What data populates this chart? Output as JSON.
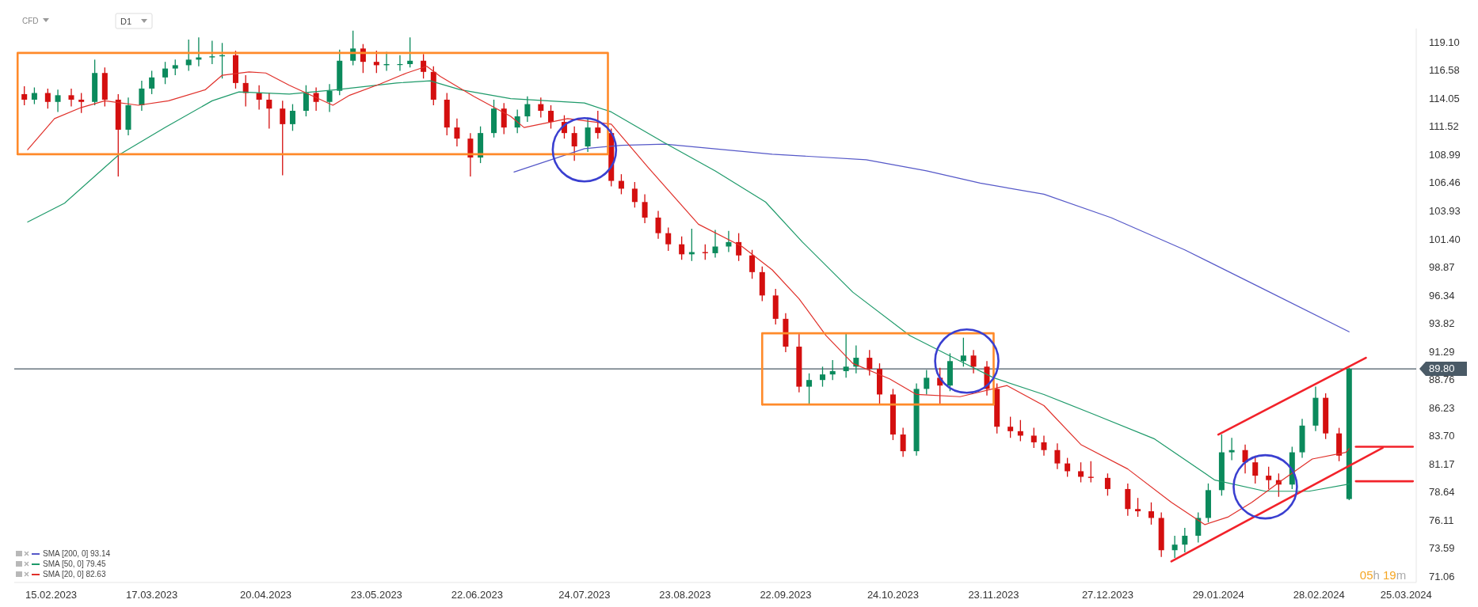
{
  "chart_data": {
    "type": "candlestick",
    "x": [
      "2023-02-07",
      "2023-02-10",
      "2023-02-14",
      "2023-02-17",
      "2023-02-21",
      "2023-02-24",
      "2023-02-28",
      "2023-03-03",
      "2023-03-07",
      "2023-03-10",
      "2023-03-14",
      "2023-03-17",
      "2023-03-21",
      "2023-03-24",
      "2023-03-28",
      "2023-03-31",
      "2023-04-04",
      "2023-04-07",
      "2023-04-11",
      "2023-04-14",
      "2023-04-18",
      "2023-04-21",
      "2023-04-25",
      "2023-04-28",
      "2023-05-02",
      "2023-05-05",
      "2023-05-09",
      "2023-05-12",
      "2023-05-16",
      "2023-05-19",
      "2023-05-23",
      "2023-05-26",
      "2023-05-30",
      "2023-06-02",
      "2023-06-06",
      "2023-06-09",
      "2023-06-13",
      "2023-06-16",
      "2023-06-20",
      "2023-06-23",
      "2023-06-27",
      "2023-06-30",
      "2023-07-04",
      "2023-07-07",
      "2023-07-11",
      "2023-07-14",
      "2023-07-18",
      "2023-07-21",
      "2023-07-25",
      "2023-07-28",
      "2023-08-01",
      "2023-08-04",
      "2023-08-08",
      "2023-08-11",
      "2023-08-15",
      "2023-08-18",
      "2023-08-22",
      "2023-08-25",
      "2023-08-29",
      "2023-09-01",
      "2023-09-05",
      "2023-09-08",
      "2023-09-12",
      "2023-09-15",
      "2023-09-19",
      "2023-09-22",
      "2023-09-26",
      "2023-09-29",
      "2023-10-03",
      "2023-10-06",
      "2023-10-10",
      "2023-10-13",
      "2023-10-17",
      "2023-10-20",
      "2023-10-24",
      "2023-10-27",
      "2023-10-31",
      "2023-11-03",
      "2023-11-07",
      "2023-11-10",
      "2023-11-14",
      "2023-11-17",
      "2023-11-21",
      "2023-11-24",
      "2023-11-28",
      "2023-12-01",
      "2023-12-05",
      "2023-12-08",
      "2023-12-12",
      "2023-12-15",
      "2023-12-19",
      "2023-12-22",
      "2023-12-27",
      "2024-01-02",
      "2024-01-05",
      "2024-01-09",
      "2024-01-12",
      "2024-01-16",
      "2024-01-19",
      "2024-01-23",
      "2024-01-26",
      "2024-01-30",
      "2024-02-02",
      "2024-02-06",
      "2024-02-09",
      "2024-02-13",
      "2024-02-16",
      "2024-02-20",
      "2024-02-23",
      "2024-02-27",
      "2024-03-01",
      "2024-03-05",
      "2024-03-08"
    ],
    "ohlc": [
      [
        114.5,
        115.2,
        113.5,
        114.0
      ],
      [
        114.0,
        115.1,
        113.6,
        114.6
      ],
      [
        114.6,
        115.0,
        113.2,
        113.8
      ],
      [
        113.8,
        114.9,
        112.9,
        114.4
      ],
      [
        114.4,
        115.0,
        113.4,
        114.0
      ],
      [
        114.0,
        114.6,
        112.8,
        113.8
      ],
      [
        113.8,
        117.6,
        113.5,
        116.4
      ],
      [
        116.4,
        116.9,
        113.4,
        114.0
      ],
      [
        114.0,
        114.5,
        107.1,
        111.3
      ],
      [
        111.3,
        114.2,
        110.8,
        113.5
      ],
      [
        113.5,
        115.7,
        113.0,
        115.0
      ],
      [
        115.0,
        116.6,
        114.5,
        116.0
      ],
      [
        116.0,
        117.4,
        115.4,
        116.8
      ],
      [
        116.8,
        117.6,
        116.2,
        117.1
      ],
      [
        117.1,
        119.4,
        116.6,
        117.6
      ],
      [
        117.6,
        119.6,
        117.0,
        117.8
      ],
      [
        117.8,
        119.3,
        117.2,
        117.9
      ],
      [
        117.9,
        119.1,
        115.9,
        118.0
      ],
      [
        118.0,
        118.4,
        115.0,
        115.5
      ],
      [
        115.5,
        116.2,
        113.4,
        114.6
      ],
      [
        114.6,
        115.3,
        113.1,
        114.0
      ],
      [
        114.0,
        114.6,
        111.4,
        113.2
      ],
      [
        113.2,
        113.9,
        107.2,
        111.8
      ],
      [
        111.8,
        113.6,
        111.2,
        113.0
      ],
      [
        113.0,
        115.3,
        112.5,
        114.6
      ],
      [
        114.6,
        115.1,
        113.0,
        113.8
      ],
      [
        113.8,
        115.4,
        112.9,
        114.8
      ],
      [
        114.8,
        118.5,
        114.4,
        117.5
      ],
      [
        117.5,
        120.2,
        117.1,
        118.6
      ],
      [
        118.6,
        119.0,
        116.4,
        117.4
      ],
      [
        117.4,
        118.4,
        116.4,
        117.1
      ],
      [
        117.1,
        118.3,
        116.6,
        117.2
      ],
      [
        117.2,
        118.0,
        116.6,
        117.2
      ],
      [
        117.2,
        119.6,
        116.9,
        117.5
      ],
      [
        117.5,
        118.1,
        115.9,
        116.5
      ],
      [
        116.5,
        117.0,
        113.5,
        114.0
      ],
      [
        114.0,
        114.6,
        110.8,
        111.5
      ],
      [
        111.5,
        112.3,
        109.8,
        110.5
      ],
      [
        110.5,
        111.0,
        107.1,
        108.8
      ],
      [
        108.8,
        111.6,
        108.3,
        111.0
      ],
      [
        111.0,
        114.0,
        110.6,
        113.2
      ],
      [
        113.2,
        113.7,
        110.9,
        111.5
      ],
      [
        111.5,
        113.1,
        111.0,
        112.5
      ],
      [
        112.5,
        114.3,
        112.0,
        113.6
      ],
      [
        113.6,
        114.2,
        112.4,
        113.0
      ],
      [
        113.0,
        113.5,
        111.4,
        112.0
      ],
      [
        112.0,
        112.6,
        110.5,
        111.0
      ],
      [
        111.0,
        111.6,
        108.5,
        109.8
      ],
      [
        109.8,
        112.4,
        109.3,
        111.5
      ],
      [
        111.5,
        113.0,
        110.5,
        111.0
      ],
      [
        111.0,
        111.4,
        106.2,
        106.7
      ],
      [
        106.7,
        107.3,
        105.5,
        106.0
      ],
      [
        106.0,
        106.6,
        104.3,
        104.8
      ],
      [
        104.8,
        105.5,
        102.9,
        103.4
      ],
      [
        103.4,
        104.0,
        101.5,
        102.0
      ],
      [
        102.0,
        102.5,
        100.4,
        101.0
      ],
      [
        101.0,
        101.7,
        99.6,
        100.1
      ],
      [
        100.1,
        102.4,
        99.5,
        100.3
      ],
      [
        100.3,
        101.0,
        99.6,
        100.2
      ],
      [
        100.2,
        102.3,
        99.8,
        100.8
      ],
      [
        100.8,
        102.2,
        100.3,
        101.2
      ],
      [
        101.2,
        102.0,
        99.5,
        100.0
      ],
      [
        100.0,
        100.5,
        97.9,
        98.5
      ],
      [
        98.5,
        99.0,
        95.9,
        96.4
      ],
      [
        96.4,
        97.0,
        93.8,
        94.3
      ],
      [
        94.3,
        94.8,
        91.3,
        91.8
      ],
      [
        91.8,
        93.0,
        87.7,
        88.2
      ],
      [
        88.2,
        89.4,
        86.6,
        88.8
      ],
      [
        88.8,
        90.0,
        88.2,
        89.3
      ],
      [
        89.3,
        90.6,
        88.8,
        89.6
      ],
      [
        89.6,
        93.0,
        89.0,
        90.0
      ],
      [
        90.0,
        91.9,
        89.4,
        90.8
      ],
      [
        90.8,
        91.5,
        89.2,
        89.8
      ],
      [
        89.8,
        90.3,
        86.6,
        87.5
      ],
      [
        87.5,
        88.0,
        83.4,
        83.9
      ],
      [
        83.9,
        84.5,
        81.9,
        82.4
      ],
      [
        82.4,
        88.5,
        82.0,
        88.0
      ],
      [
        88.0,
        89.7,
        87.5,
        89.0
      ],
      [
        89.0,
        89.9,
        86.6,
        88.3
      ],
      [
        88.3,
        91.2,
        87.8,
        90.5
      ],
      [
        90.5,
        92.6,
        90.0,
        91.0
      ],
      [
        91.0,
        91.5,
        89.4,
        90.0
      ],
      [
        90.0,
        90.5,
        87.4,
        88.0
      ],
      [
        88.0,
        88.5,
        84.0,
        84.6
      ],
      [
        84.6,
        85.5,
        83.6,
        84.2
      ],
      [
        84.2,
        85.2,
        83.3,
        83.8
      ],
      [
        83.8,
        84.5,
        82.7,
        83.2
      ],
      [
        83.2,
        83.8,
        82.0,
        82.5
      ],
      [
        82.5,
        83.1,
        80.8,
        81.3
      ],
      [
        81.3,
        81.8,
        80.1,
        80.6
      ],
      [
        80.6,
        81.4,
        79.6,
        80.1
      ],
      [
        80.1,
        81.5,
        79.6,
        80.0
      ],
      [
        80.0,
        80.4,
        78.4,
        79.0
      ],
      [
        79.0,
        79.5,
        76.6,
        77.2
      ],
      [
        77.2,
        78.2,
        76.5,
        77.0
      ],
      [
        77.0,
        77.8,
        75.8,
        76.4
      ],
      [
        76.4,
        76.9,
        72.9,
        73.5
      ],
      [
        73.5,
        74.8,
        72.8,
        74.0
      ],
      [
        74.0,
        75.5,
        73.3,
        74.8
      ],
      [
        74.8,
        76.9,
        74.2,
        76.4
      ],
      [
        76.4,
        79.5,
        76.0,
        78.9
      ],
      [
        78.9,
        83.9,
        78.4,
        82.3
      ],
      [
        82.3,
        83.6,
        81.6,
        82.5
      ],
      [
        82.5,
        83.0,
        80.4,
        81.4
      ],
      [
        81.4,
        82.0,
        79.5,
        80.2
      ],
      [
        80.2,
        81.0,
        79.0,
        79.8
      ],
      [
        79.8,
        80.4,
        78.3,
        79.4
      ],
      [
        79.4,
        82.8,
        79.0,
        82.3
      ],
      [
        82.3,
        85.3,
        81.8,
        84.7
      ],
      [
        84.7,
        88.2,
        84.2,
        87.2
      ],
      [
        87.2,
        87.6,
        83.5,
        84.0
      ],
      [
        84.0,
        84.5,
        81.5,
        82.0
      ],
      [
        78.1,
        89.9,
        78.0,
        89.8
      ]
    ],
    "series": [
      {
        "type": "line",
        "name": "SMA [200, 0] 93.14",
        "color": "#5558c8",
        "x": [
          "2023-07-03",
          "2023-07-24",
          "2023-08-04",
          "2023-08-17",
          "2023-09-18",
          "2023-10-16",
          "2023-11-03",
          "2023-11-19",
          "2023-12-08",
          "2023-12-28",
          "2024-01-19",
          "2024-02-10",
          "2024-03-08"
        ],
        "values": [
          107.5,
          109.6,
          109.9,
          110.0,
          109.1,
          108.6,
          107.6,
          106.5,
          105.5,
          103.4,
          100.5,
          97.2,
          93.14
        ]
      },
      {
        "type": "line",
        "name": "SMA [50, 0] 79.45",
        "color": "#1e9a6a",
        "x": [
          "2023-02-08",
          "2023-02-19",
          "2023-03-07",
          "2023-03-21",
          "2023-04-04",
          "2023-04-12",
          "2023-04-27",
          "2023-05-11",
          "2023-05-29",
          "2023-06-08",
          "2023-06-17",
          "2023-07-02",
          "2023-07-24",
          "2023-08-01",
          "2023-08-17",
          "2023-09-01",
          "2023-09-16",
          "2023-09-27",
          "2023-10-12",
          "2023-10-29",
          "2023-11-13",
          "2023-11-23",
          "2023-12-08",
          "2023-12-23",
          "2024-01-10",
          "2024-01-28",
          "2024-02-12",
          "2024-02-25",
          "2024-03-08"
        ],
        "values": [
          103.0,
          104.7,
          109.0,
          111.5,
          113.9,
          114.7,
          114.5,
          114.9,
          115.5,
          115.7,
          114.9,
          114.1,
          113.7,
          112.9,
          110.1,
          107.6,
          104.8,
          101.2,
          96.7,
          92.8,
          90.5,
          89.0,
          87.5,
          85.7,
          83.5,
          79.8,
          78.8,
          78.8,
          79.45
        ]
      },
      {
        "type": "line",
        "name": "SMA [20, 0] 82.63",
        "color": "#e0302a",
        "x": [
          "2023-02-08",
          "2023-02-16",
          "2023-02-24",
          "2023-03-03",
          "2023-03-13",
          "2023-03-22",
          "2023-04-02",
          "2023-04-07",
          "2023-04-15",
          "2023-04-20",
          "2023-04-27",
          "2023-05-10",
          "2023-05-15",
          "2023-05-24",
          "2023-06-01",
          "2023-06-07",
          "2023-06-11",
          "2023-06-21",
          "2023-07-02",
          "2023-07-06",
          "2023-07-19",
          "2023-08-01",
          "2023-08-12",
          "2023-08-27",
          "2023-09-09",
          "2023-09-18",
          "2023-09-26",
          "2023-10-04",
          "2023-10-12",
          "2023-10-23",
          "2023-10-31",
          "2023-11-13",
          "2023-11-27",
          "2023-12-08",
          "2023-12-19",
          "2024-01-02",
          "2024-01-15",
          "2024-01-25",
          "2024-02-01",
          "2024-02-08",
          "2024-02-17",
          "2024-02-26",
          "2024-03-07",
          "2024-03-08"
        ],
        "values": [
          109.5,
          112.3,
          113.3,
          113.9,
          113.5,
          113.9,
          114.9,
          116.2,
          116.5,
          116.4,
          115.3,
          113.5,
          114.4,
          115.4,
          116.4,
          117.0,
          116.1,
          114.3,
          112.5,
          111.5,
          112.3,
          111.8,
          107.9,
          102.8,
          100.8,
          98.7,
          96.1,
          92.8,
          90.3,
          88.9,
          87.5,
          87.3,
          88.3,
          86.5,
          83.0,
          80.8,
          77.8,
          75.8,
          76.5,
          77.8,
          79.8,
          81.7,
          82.3,
          82.63
        ]
      },
      {
        "type": "line",
        "color": "#ff8a2a",
        "x": [
          "2023-02-05",
          "2023-02-05",
          "2023-07-31",
          "2023-07-31"
        ],
        "values": [
          109.1,
          118.2,
          118.2,
          109.1
        ]
      },
      {
        "type": "line",
        "color": "#ff8a2a",
        "x": [
          "2023-02-05",
          "2023-07-31"
        ],
        "values": [
          109.1,
          109.1
        ]
      },
      {
        "type": "line",
        "color": "#ff8a2a",
        "x": [
          "2023-09-15",
          "2023-09-15",
          "2023-11-23",
          "2023-11-23"
        ],
        "values": [
          86.6,
          93.0,
          93.0,
          86.6
        ]
      },
      {
        "type": "line",
        "color": "#ff8a2a",
        "x": [
          "2023-09-15",
          "2023-11-23"
        ],
        "values": [
          86.6,
          86.6
        ]
      },
      {
        "type": "line",
        "color": "#f2222a",
        "x": [
          "2024-01-29",
          "2024-03-13"
        ],
        "values": [
          83.9,
          90.8
        ]
      },
      {
        "type": "line",
        "color": "#f2222a",
        "x": [
          "2024-01-15",
          "2024-03-18"
        ],
        "values": [
          72.5,
          82.7
        ]
      },
      {
        "type": "line",
        "color": "#f2222a",
        "x": [
          "2024-03-10",
          "2024-03-27"
        ],
        "values": [
          82.8,
          82.8
        ]
      },
      {
        "type": "line",
        "color": "#f2222a",
        "x": [
          "2024-03-10",
          "2024-03-27"
        ],
        "values": [
          79.7,
          79.7
        ]
      },
      {
        "type": "scatter",
        "marker": "circle",
        "color": "#3a3fd0",
        "x": [
          "2023-07-24",
          "2023-11-15",
          "2024-02-12"
        ],
        "values": [
          109.5,
          90.5,
          79.2
        ]
      }
    ],
    "xlim": [
      "2023-02-04",
      "2024-03-28"
    ],
    "xticks": [
      {
        "value": "2023-02-15",
        "label": "15.02.2023"
      },
      {
        "value": "2023-03-17",
        "label": "17.03.2023"
      },
      {
        "value": "2023-04-20",
        "label": "20.04.2023"
      },
      {
        "value": "2023-05-23",
        "label": "23.05.2023"
      },
      {
        "value": "2023-06-22",
        "label": "22.06.2023"
      },
      {
        "value": "2023-07-24",
        "label": "24.07.2023"
      },
      {
        "value": "2023-08-23",
        "label": "23.08.2023"
      },
      {
        "value": "2023-09-22",
        "label": "22.09.2023"
      },
      {
        "value": "2023-10-24",
        "label": "24.10.2023"
      },
      {
        "value": "2023-11-23",
        "label": "23.11.2023"
      },
      {
        "value": "2023-12-27",
        "label": "27.12.2023"
      },
      {
        "value": "2024-01-29",
        "label": "29.01.2024"
      },
      {
        "value": "2024-02-28",
        "label": "28.02.2024"
      },
      {
        "value": "2024-03-25",
        "label": "25.03.2024"
      }
    ],
    "ylim": [
      70.6,
      120.4
    ],
    "yticks": [
      {
        "value": 119.1,
        "label": "119.10"
      },
      116.58,
      114.05,
      111.52,
      108.99,
      106.46,
      103.93,
      {
        "value": 101.4,
        "label": "101.40"
      },
      98.87,
      96.34,
      93.82,
      91.29,
      88.76,
      86.23,
      {
        "value": 83.7,
        "label": "83.70"
      },
      81.17,
      78.64,
      76.11,
      73.59,
      71.06
    ],
    "ref_lines": [
      {
        "axis": "y",
        "value": 89.8,
        "label": "89.80",
        "color": "#4a5a66"
      }
    ],
    "annotations": [
      "CFD",
      "D1",
      "05h 19m"
    ],
    "legend": "bottom left",
    "grid": false,
    "line_style": "solid"
  }
}
